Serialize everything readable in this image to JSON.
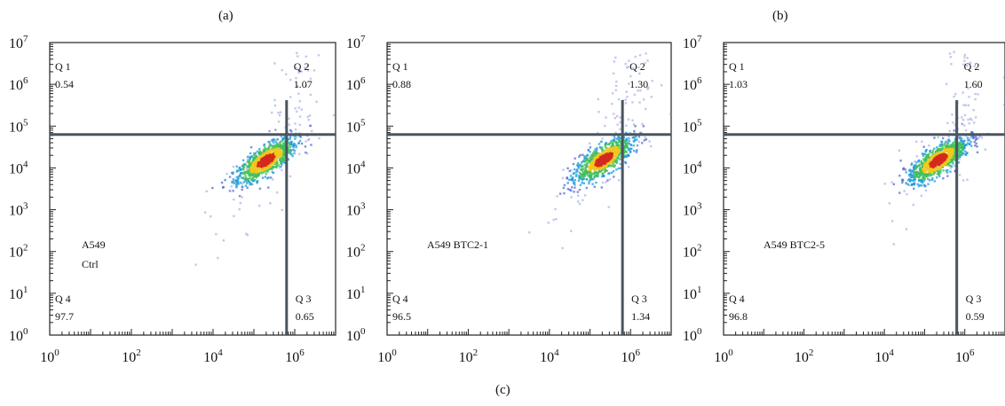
{
  "figure": {
    "labels": [
      "(a)",
      "(b)",
      "(c)"
    ]
  },
  "chart_data": [
    {
      "type": "scatter",
      "scale": "log",
      "xlim": [
        1,
        10000000
      ],
      "ylim": [
        1,
        10000000
      ],
      "x_ticks": [
        "10^0",
        "10^2",
        "10^4",
        "10^6"
      ],
      "y_ticks": [
        "10^0",
        "10^1",
        "10^2",
        "10^3",
        "10^4",
        "10^5",
        "10^6",
        "10^7"
      ],
      "gate": {
        "x": 630957,
        "y": 63096
      },
      "sample_label": [
        "A549",
        "Ctrl"
      ],
      "quadrants": [
        {
          "name": "Q 1",
          "value": "0.54"
        },
        {
          "name": "Q 2",
          "value": "1.07"
        },
        {
          "name": "Q 3",
          "value": "0.65"
        },
        {
          "name": "Q 4",
          "value": "97.7"
        }
      ],
      "population_center": {
        "x": 200000,
        "y": 15000
      }
    },
    {
      "type": "scatter",
      "scale": "log",
      "xlim": [
        1,
        10000000
      ],
      "ylim": [
        1,
        10000000
      ],
      "x_ticks": [
        "10^0",
        "10^2",
        "10^4",
        "10^6"
      ],
      "y_ticks": [
        "10^0",
        "10^1",
        "10^2",
        "10^3",
        "10^4",
        "10^5",
        "10^6",
        "10^7"
      ],
      "gate": {
        "x": 630957,
        "y": 63096
      },
      "sample_label": [
        "A549 BTC2-1"
      ],
      "quadrants": [
        {
          "name": "Q 1",
          "value": "0.88"
        },
        {
          "name": "Q 2",
          "value": "1.30"
        },
        {
          "name": "Q 3",
          "value": "1.34"
        },
        {
          "name": "Q 4",
          "value": "96.5"
        }
      ],
      "population_center": {
        "x": 220000,
        "y": 16000
      }
    },
    {
      "type": "scatter",
      "scale": "log",
      "xlim": [
        1,
        10000000
      ],
      "ylim": [
        1,
        10000000
      ],
      "x_ticks": [
        "10^0",
        "10^2",
        "10^4",
        "10^6"
      ],
      "y_ticks": [
        "10^0",
        "10^1",
        "10^2",
        "10^3",
        "10^4",
        "10^5",
        "10^6",
        "10^7"
      ],
      "gate": {
        "x": 630957,
        "y": 63096
      },
      "sample_label": [
        "A549 BTC2-5"
      ],
      "quadrants": [
        {
          "name": "Q 1",
          "value": "1.03"
        },
        {
          "name": "Q 2",
          "value": "1.60"
        },
        {
          "name": "Q 3",
          "value": "0.59"
        },
        {
          "name": "Q 4",
          "value": "96.8"
        }
      ],
      "population_center": {
        "x": 220000,
        "y": 15000
      }
    }
  ]
}
